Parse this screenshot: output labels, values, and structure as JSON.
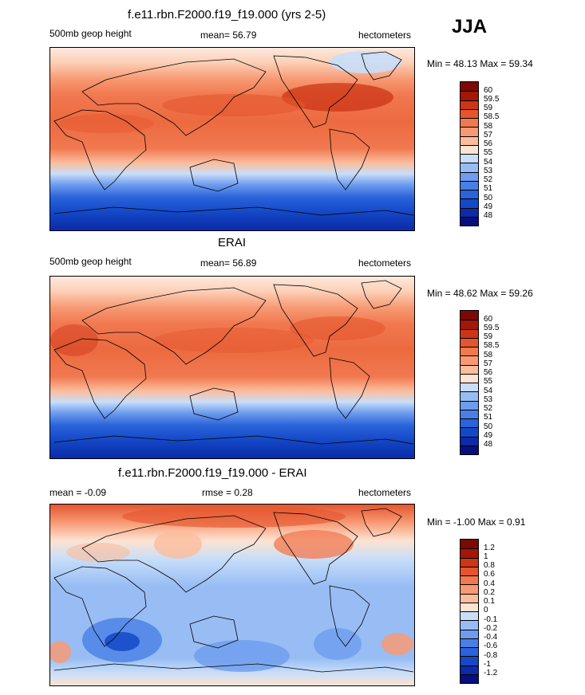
{
  "season": "JJA",
  "panels": [
    {
      "title": "f.e11.rbn.F2000.f19_f19.000 (yrs 2-5)",
      "left_label": "500mb geop height",
      "center_label": "mean=  56.79",
      "right_label": "hectometers",
      "minmax": "Min =  48.13 Max =  59.34",
      "levels": [
        "48",
        "49",
        "50",
        "51",
        "52",
        "53",
        "54",
        "55",
        "56",
        "57",
        "58",
        "58.5",
        "59",
        "59.5",
        "60"
      ],
      "colors": [
        "#07107d",
        "#0b2ba8",
        "#1448c7",
        "#2a63da",
        "#4a80e6",
        "#6e9cee",
        "#98bdf4",
        "#c8def9",
        "#fde3d2",
        "#fbbd9c",
        "#f79a74",
        "#f1784f",
        "#e5562f",
        "#cc3516",
        "#a31708",
        "#7c0903"
      ]
    },
    {
      "title": "ERAI",
      "left_label": "500mb geop height",
      "center_label": "mean=  56.89",
      "right_label": "hectometers",
      "minmax": "Min =  48.62 Max =  59.26",
      "levels": [
        "48",
        "49",
        "50",
        "51",
        "52",
        "53",
        "54",
        "55",
        "56",
        "57",
        "58",
        "58.5",
        "59",
        "59.5",
        "60"
      ],
      "colors": [
        "#07107d",
        "#0b2ba8",
        "#1448c7",
        "#2a63da",
        "#4a80e6",
        "#6e9cee",
        "#98bdf4",
        "#c8def9",
        "#fde3d2",
        "#fbbd9c",
        "#f79a74",
        "#f1784f",
        "#e5562f",
        "#cc3516",
        "#a31708",
        "#7c0903"
      ]
    },
    {
      "title": "f.e11.rbn.F2000.f19_f19.000 - ERAI",
      "left_label": "mean =  -0.09",
      "center_label": "rmse =   0.28",
      "right_label": "hectometers",
      "minmax": "Min =  -1.00 Max =   0.91",
      "levels": [
        "-1.2",
        "-1",
        "-0.8",
        "-0.6",
        "-0.4",
        "-0.2",
        "-0.1",
        "0",
        "0.1",
        "0.2",
        "0.4",
        "0.6",
        "0.8",
        "1",
        "1.2"
      ],
      "colors": [
        "#07107d",
        "#0b2ba8",
        "#1448c7",
        "#2a63da",
        "#4a80e6",
        "#6e9cee",
        "#98bdf4",
        "#c8def9",
        "#fde3d2",
        "#fbbd9c",
        "#f79a74",
        "#f1784f",
        "#e5562f",
        "#cc3516",
        "#a31708",
        "#7c0903"
      ]
    }
  ]
}
